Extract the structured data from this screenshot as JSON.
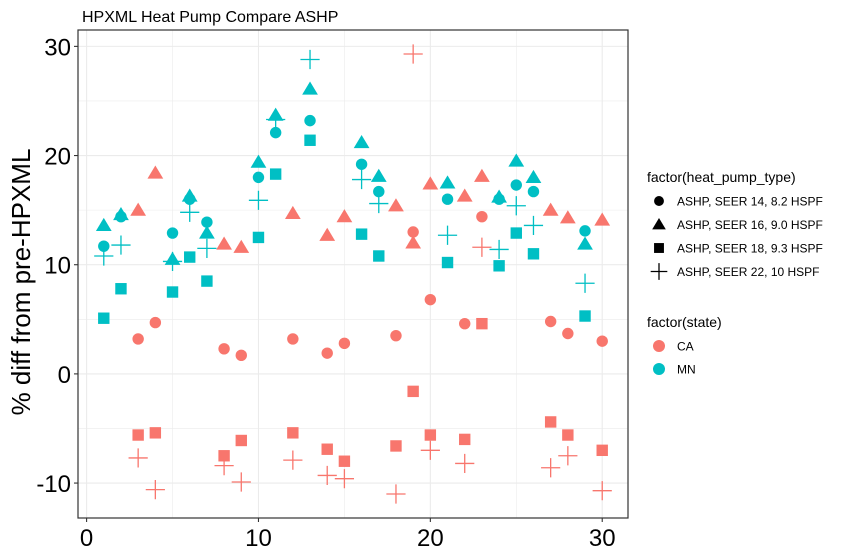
{
  "chart_data": {
    "type": "scatter",
    "title": "HPXML Heat Pump Compare ASHP",
    "xlabel": "",
    "ylabel": "% diff from pre-HPXML",
    "xlim": [
      -0.5,
      31.5
    ],
    "ylim": [
      -13.2,
      31.5
    ],
    "x_ticks": [
      0,
      10,
      20,
      30
    ],
    "y_ticks": [
      -10,
      0,
      10,
      20,
      30
    ],
    "x_tick_labels": [
      "0",
      "10",
      "20",
      "30"
    ],
    "y_tick_labels": [
      "-10",
      "0",
      "10",
      "20",
      "30"
    ],
    "grid": true,
    "legend_position": "right",
    "colors": {
      "CA": "#F8766D",
      "MN": "#00BFC4",
      "grid": "#EBEBEB"
    },
    "legends": {
      "shape": {
        "title": "factor(heat_pump_type)",
        "entries": [
          {
            "label": "ASHP, SEER 14, 8.2 HSPF",
            "shape": "circle"
          },
          {
            "label": "ASHP, SEER 16, 9.0 HSPF",
            "shape": "triangle"
          },
          {
            "label": "ASHP, SEER 18, 9.3 HSPF",
            "shape": "square"
          },
          {
            "label": "ASHP, SEER 22, 10 HSPF",
            "shape": "plus"
          }
        ]
      },
      "color": {
        "title": "factor(state)",
        "entries": [
          {
            "label": "CA",
            "color": "#F8766D"
          },
          {
            "label": "MN",
            "color": "#00BFC4"
          }
        ]
      }
    },
    "series": [
      {
        "state": "CA",
        "shape": "circle",
        "points": [
          [
            3,
            3.2
          ],
          [
            4,
            4.7
          ],
          [
            8,
            2.3
          ],
          [
            9,
            1.7
          ],
          [
            12,
            3.2
          ],
          [
            14,
            1.9
          ],
          [
            15,
            2.8
          ],
          [
            18,
            3.5
          ],
          [
            19,
            13.0
          ],
          [
            20,
            6.8
          ],
          [
            22,
            4.6
          ],
          [
            23,
            14.4
          ],
          [
            27,
            4.8
          ],
          [
            28,
            3.7
          ],
          [
            30,
            3.0
          ]
        ]
      },
      {
        "state": "MN",
        "shape": "circle",
        "points": [
          [
            1,
            11.7
          ],
          [
            2,
            14.4
          ],
          [
            5,
            12.9
          ],
          [
            6,
            16.0
          ],
          [
            7,
            13.9
          ],
          [
            10,
            18.0
          ],
          [
            11,
            22.1
          ],
          [
            13,
            23.2
          ],
          [
            16,
            19.2
          ],
          [
            17,
            16.7
          ],
          [
            21,
            16.0
          ],
          [
            24,
            16.0
          ],
          [
            25,
            17.3
          ],
          [
            26,
            16.7
          ],
          [
            29,
            13.1
          ]
        ]
      },
      {
        "state": "CA",
        "shape": "triangle",
        "points": [
          [
            3,
            15.0
          ],
          [
            4,
            18.4
          ],
          [
            8,
            11.9
          ],
          [
            9,
            11.6
          ],
          [
            12,
            14.7
          ],
          [
            14,
            12.7
          ],
          [
            15,
            14.4
          ],
          [
            18,
            15.4
          ],
          [
            19,
            12.0
          ],
          [
            20,
            17.4
          ],
          [
            22,
            16.3
          ],
          [
            23,
            18.1
          ],
          [
            27,
            15.0
          ],
          [
            28,
            14.3
          ],
          [
            30,
            14.1
          ]
        ]
      },
      {
        "state": "MN",
        "shape": "triangle",
        "points": [
          [
            1,
            13.6
          ],
          [
            2,
            14.6
          ],
          [
            5,
            10.5
          ],
          [
            6,
            16.3
          ],
          [
            7,
            12.9
          ],
          [
            10,
            19.4
          ],
          [
            11,
            23.7
          ],
          [
            13,
            26.1
          ],
          [
            16,
            21.2
          ],
          [
            17,
            18.1
          ],
          [
            21,
            17.5
          ],
          [
            24,
            16.2
          ],
          [
            25,
            19.5
          ],
          [
            26,
            18.0
          ],
          [
            29,
            11.9
          ]
        ]
      },
      {
        "state": "CA",
        "shape": "square",
        "points": [
          [
            3,
            -5.6
          ],
          [
            4,
            -5.4
          ],
          [
            8,
            -7.5
          ],
          [
            9,
            -6.1
          ],
          [
            12,
            -5.4
          ],
          [
            14,
            -6.9
          ],
          [
            15,
            -8.0
          ],
          [
            18,
            -6.6
          ],
          [
            19,
            -1.6
          ],
          [
            20,
            -5.6
          ],
          [
            22,
            -6.0
          ],
          [
            23,
            4.6
          ],
          [
            27,
            -4.4
          ],
          [
            28,
            -5.6
          ],
          [
            30,
            -7.0
          ]
        ]
      },
      {
        "state": "MN",
        "shape": "square",
        "points": [
          [
            1,
            5.1
          ],
          [
            2,
            7.8
          ],
          [
            5,
            7.5
          ],
          [
            6,
            10.7
          ],
          [
            7,
            8.5
          ],
          [
            10,
            12.5
          ],
          [
            11,
            18.3
          ],
          [
            13,
            21.4
          ],
          [
            16,
            12.8
          ],
          [
            17,
            10.8
          ],
          [
            21,
            10.2
          ],
          [
            24,
            9.9
          ],
          [
            25,
            12.9
          ],
          [
            26,
            11.0
          ],
          [
            29,
            5.3
          ]
        ]
      },
      {
        "state": "CA",
        "shape": "plus",
        "points": [
          [
            3,
            -7.7
          ],
          [
            4,
            -10.6
          ],
          [
            8,
            -8.4
          ],
          [
            9,
            -9.9
          ],
          [
            12,
            -7.9
          ],
          [
            14,
            -9.3
          ],
          [
            15,
            -9.6
          ],
          [
            18,
            -11.0
          ],
          [
            19,
            29.3
          ],
          [
            20,
            -7.0
          ],
          [
            22,
            -8.2
          ],
          [
            23,
            11.6
          ],
          [
            27,
            -8.6
          ],
          [
            28,
            -7.5
          ],
          [
            30,
            -10.7
          ]
        ]
      },
      {
        "state": "MN",
        "shape": "plus",
        "points": [
          [
            1,
            10.8
          ],
          [
            2,
            11.8
          ],
          [
            5,
            10.3
          ],
          [
            6,
            14.8
          ],
          [
            7,
            11.5
          ],
          [
            10,
            15.9
          ],
          [
            11,
            23.3
          ],
          [
            13,
            28.8
          ],
          [
            16,
            17.8
          ],
          [
            17,
            15.6
          ],
          [
            21,
            12.7
          ],
          [
            24,
            11.4
          ],
          [
            25,
            15.4
          ],
          [
            26,
            13.6
          ],
          [
            29,
            8.3
          ]
        ]
      }
    ]
  }
}
